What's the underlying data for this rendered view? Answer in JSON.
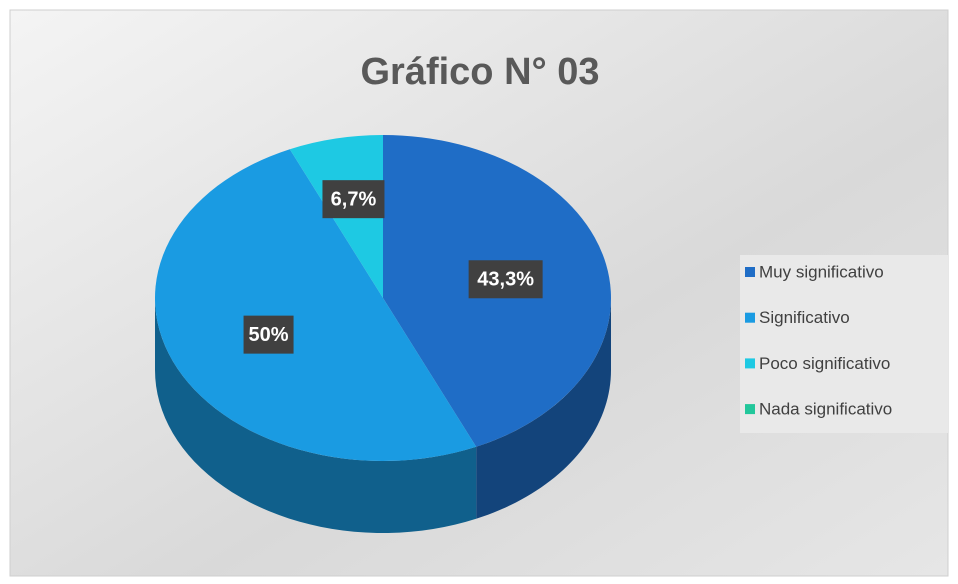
{
  "chart_data": {
    "type": "pie",
    "title": "Gráfico N° 03",
    "categories": [
      "Muy significativo",
      "Significativo",
      "Poco significativo",
      "Nada significativo"
    ],
    "values": [
      43.3,
      50,
      6.7,
      0
    ],
    "value_labels": [
      "43,3%",
      "50%",
      "6,7%",
      null
    ],
    "colors": [
      "#1f6dc6",
      "#1a9be2",
      "#1ec9e3",
      "#22c79b"
    ],
    "legend": "right"
  }
}
